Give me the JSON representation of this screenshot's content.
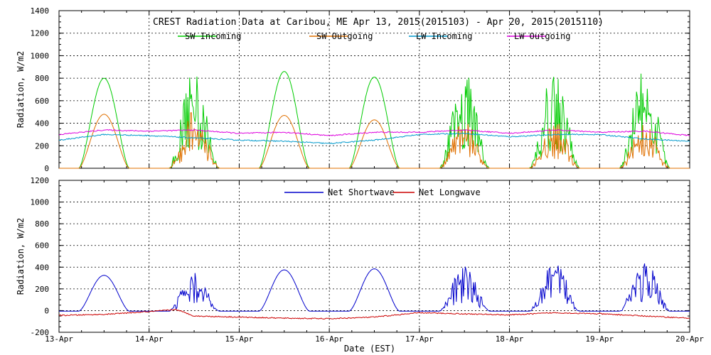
{
  "chart_data": [
    {
      "type": "line",
      "title": "CREST Radiation Data at Caribou, ME   Apr 13, 2015(2015103) - Apr 20, 2015(2015110)",
      "ylabel": "Radiation, W/m2",
      "xlabel": "",
      "ylim": [
        0,
        1400
      ],
      "yticks": [
        0,
        200,
        400,
        600,
        800,
        1000,
        1200,
        1400
      ],
      "xlim_days": [
        0,
        7
      ],
      "grid": true,
      "legend_placement": "top",
      "series": [
        {
          "name": "SW Incoming",
          "color": "#00cc00",
          "daily_peaks": [
            800,
            860,
            860,
            810,
            860,
            900,
            880
          ],
          "noisy_days": [
            1,
            4,
            5,
            6
          ]
        },
        {
          "name": "SW Outgoing",
          "color": "#e07000",
          "daily_peaks": [
            480,
            520,
            470,
            430,
            420,
            440,
            410
          ],
          "noisy_days": [
            1,
            4,
            5,
            6
          ]
        },
        {
          "name": "LW Incoming",
          "color": "#0099cc",
          "daily_points": [
            [
              0,
              250
            ],
            [
              0.5,
              300
            ],
            [
              1,
              290
            ],
            [
              1.5,
              270
            ],
            [
              2,
              250
            ],
            [
              2.5,
              240
            ],
            [
              3,
              220
            ],
            [
              3.5,
              250
            ],
            [
              4,
              300
            ],
            [
              4.5,
              310
            ],
            [
              5,
              280
            ],
            [
              5.5,
              300
            ],
            [
              6,
              300
            ],
            [
              6.5,
              260
            ],
            [
              7,
              240
            ]
          ]
        },
        {
          "name": "LW Outgoing",
          "color": "#dd00dd",
          "daily_points": [
            [
              0,
              300
            ],
            [
              0.5,
              340
            ],
            [
              1,
              330
            ],
            [
              1.5,
              340
            ],
            [
              2,
              310
            ],
            [
              2.5,
              320
            ],
            [
              3,
              290
            ],
            [
              3.5,
              320
            ],
            [
              4,
              320
            ],
            [
              4.5,
              340
            ],
            [
              5,
              310
            ],
            [
              5.5,
              340
            ],
            [
              6,
              320
            ],
            [
              6.5,
              330
            ],
            [
              7,
              290
            ]
          ]
        }
      ]
    },
    {
      "type": "line",
      "title": "",
      "ylabel": "Radiation, W/m2",
      "xlabel": "Date (EST)",
      "ylim": [
        -200,
        1200
      ],
      "yticks": [
        -200,
        0,
        200,
        400,
        600,
        800,
        1000,
        1200
      ],
      "xlim_days": [
        0,
        7
      ],
      "categories": [
        "13-Apr",
        "14-Apr",
        "15-Apr",
        "16-Apr",
        "17-Apr",
        "18-Apr",
        "19-Apr",
        "20-Apr"
      ],
      "grid": true,
      "legend_placement": "top",
      "series": [
        {
          "name": "Net Shortwave",
          "color": "#0000cc",
          "daily_peaks": [
            330,
            360,
            380,
            390,
            420,
            460,
            490
          ],
          "night_value": -5,
          "noisy_days": [
            1,
            4,
            5,
            6
          ]
        },
        {
          "name": "Net Longwave",
          "color": "#cc0000",
          "daily_points": [
            [
              0,
              -45
            ],
            [
              0.5,
              -35
            ],
            [
              1,
              -10
            ],
            [
              1.3,
              10
            ],
            [
              1.5,
              -50
            ],
            [
              2,
              -60
            ],
            [
              2.5,
              -70
            ],
            [
              3,
              -75
            ],
            [
              3.5,
              -60
            ],
            [
              4,
              -20
            ],
            [
              4.5,
              -30
            ],
            [
              5,
              -40
            ],
            [
              5.5,
              -20
            ],
            [
              6,
              -30
            ],
            [
              6.5,
              -50
            ],
            [
              7,
              -70
            ]
          ]
        }
      ]
    }
  ]
}
